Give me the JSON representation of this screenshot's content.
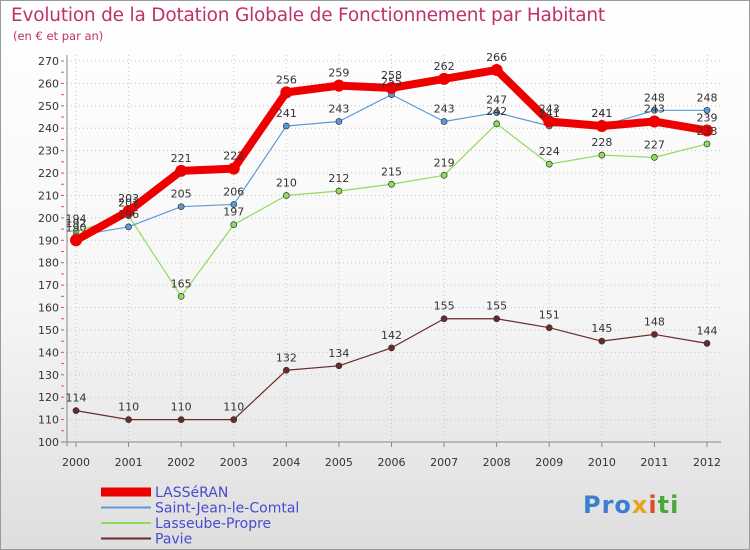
{
  "chart_data": {
    "type": "line",
    "title": "Evolution de la Dotation Globale de Fonctionnement par Habitant",
    "subtitle": "(en € et par an)",
    "x": [
      "2000",
      "2001",
      "2002",
      "2003",
      "2004",
      "2005",
      "2006",
      "2007",
      "2008",
      "2009",
      "2010",
      "2011",
      "2012"
    ],
    "ylim": [
      100,
      270
    ],
    "yticks": [
      100,
      110,
      120,
      130,
      140,
      150,
      160,
      170,
      180,
      190,
      200,
      210,
      220,
      230,
      240,
      250,
      260,
      270
    ],
    "grid": true,
    "legend_position": "bottom-left",
    "series": [
      {
        "key": "lasseran",
        "name": "LASSéRAN",
        "color": "#ee0000",
        "values": [
          190,
          203,
          221,
          222,
          256,
          259,
          258,
          262,
          266,
          243,
          241,
          243,
          239
        ]
      },
      {
        "key": "saint-jean",
        "name": "Saint-Jean-le-Comtal",
        "color": "#5b9bd5",
        "values": [
          192,
          196,
          205,
          206,
          241,
          243,
          255,
          243,
          247,
          241,
          241,
          248,
          248
        ]
      },
      {
        "key": "lasseube",
        "name": "Lasseube-Propre",
        "color": "#8fdc5a",
        "values": [
          194,
          201,
          165,
          197,
          210,
          212,
          215,
          219,
          242,
          224,
          228,
          227,
          233
        ]
      },
      {
        "key": "pavie",
        "name": "Pavie",
        "color": "#6b2a2a",
        "values": [
          114,
          110,
          110,
          110,
          132,
          134,
          142,
          155,
          155,
          151,
          145,
          148,
          144
        ]
      }
    ]
  },
  "logo": {
    "part1": "Pro",
    "part2": "x",
    "part3": "i",
    "part4": "ti"
  }
}
